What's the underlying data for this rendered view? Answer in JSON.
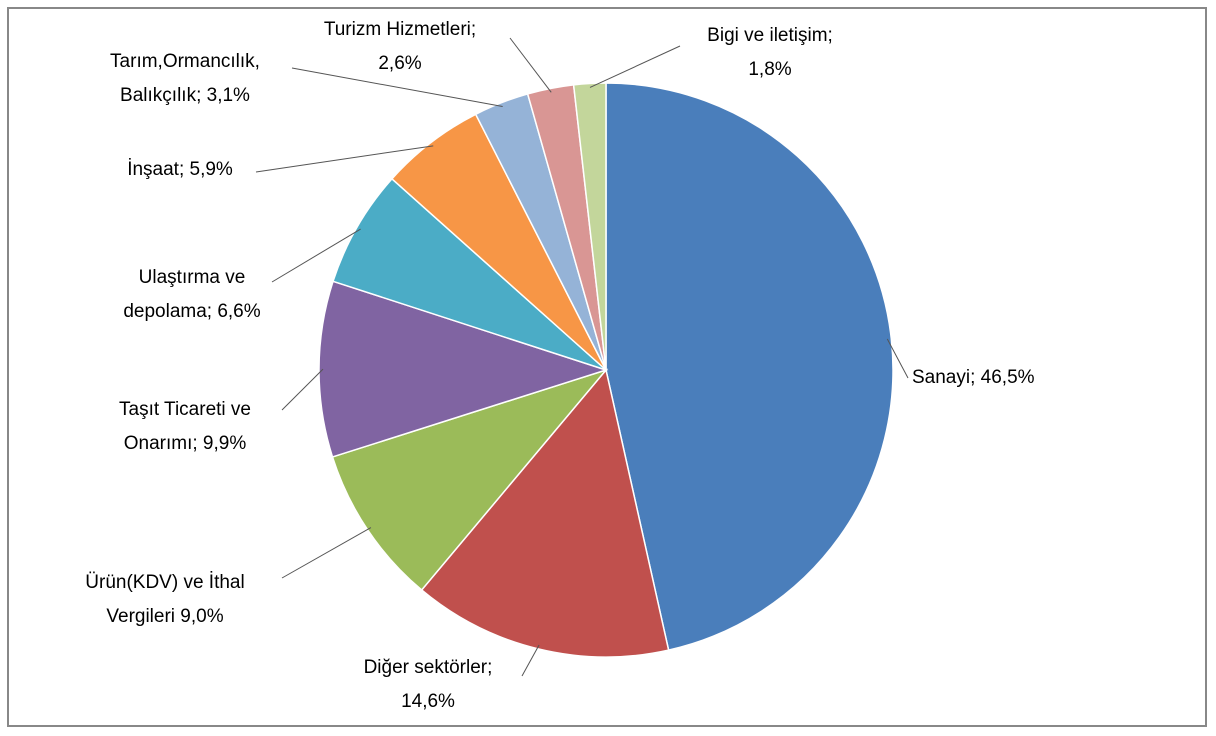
{
  "chart_data": {
    "type": "pie",
    "values": [
      46.5,
      14.6,
      9.0,
      9.9,
      6.6,
      5.9,
      3.1,
      2.6,
      1.8
    ],
    "value_labels": [
      [
        "Sanayi; 46,5%"
      ],
      [
        "Diğer sektörler;",
        "14,6%"
      ],
      [
        "Ürün(KDV) ve İthal",
        "Vergileri 9,0%"
      ],
      [
        "Taşıt Ticareti ve",
        "Onarımı; 9,9%"
      ],
      [
        "Ulaştırma ve",
        "depolama; 6,6%"
      ],
      [
        "İnşaat; 5,9%"
      ],
      [
        "Tarım,Ormancılık,",
        "Balıkçılık; 3,1%"
      ],
      [
        "Turizm Hizmetleri;",
        "2,6%"
      ],
      [
        "Bigi ve iletişim;",
        "1,8%"
      ]
    ],
    "colors": [
      "#4a7ebb",
      "#c0504d",
      "#9bbb59",
      "#8064a2",
      "#4bacc6",
      "#f79646",
      "#95b3d7",
      "#d99694",
      "#c3d69b"
    ]
  }
}
